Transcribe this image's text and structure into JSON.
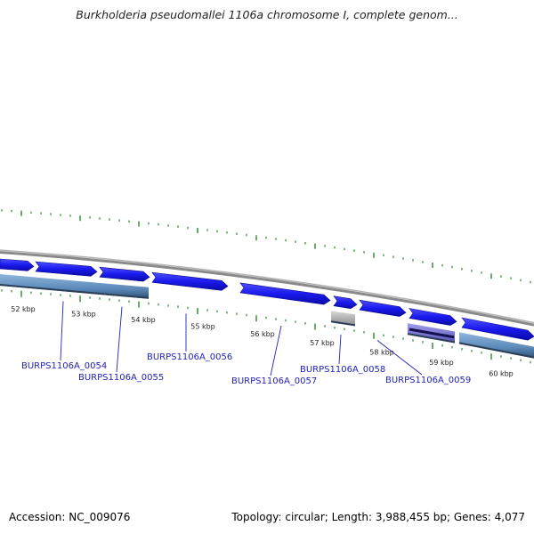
{
  "title": "Burkholderia pseudomallei 1106a chromosome I, complete genom...",
  "footer": {
    "accession": "Accession: NC_009076",
    "summary": "Topology: circular; Length: 3,988,455 bp; Genes: 4,077"
  },
  "scale_labels": [
    "52 kbp",
    "53 kbp",
    "54 kbp",
    "55 kbp",
    "56 kbp",
    "57 kbp",
    "58 kbp",
    "59 kbp",
    "60 kbp"
  ],
  "gene_labels": [
    "BURPS1106A_0054",
    "BURPS1106A_0055",
    "BURPS1106A_0056",
    "BURPS1106A_0057",
    "BURPS1106A_0058",
    "BURPS1106A_0059"
  ],
  "colors": {
    "forward_gene": "#1a1aee",
    "feature_track": "#5a88b8",
    "ticks": "#2a8a2a",
    "backbone": "#8a8a8a",
    "label": "#2222bb"
  }
}
